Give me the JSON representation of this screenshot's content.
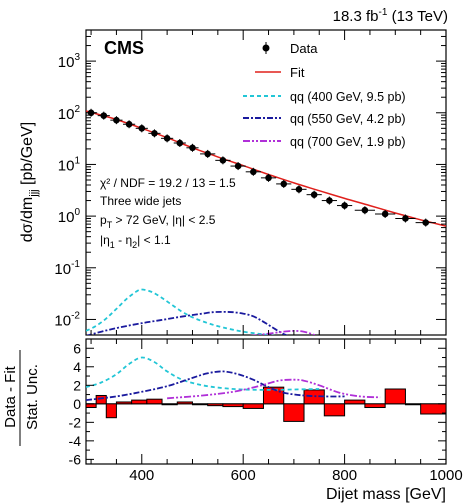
{
  "header": {
    "lumi": "18.3",
    "lumi_unit": "fb",
    "lumi_exp": "-1",
    "energy": "(13 TeV)"
  },
  "experiment": "CMS",
  "chart_data": [
    {
      "type": "scatter",
      "panel": "top",
      "ylabel": "dσ/dm",
      "ylabel_sub": "jjj",
      "ylabel_unit": "[pb/GeV]",
      "yscale": "log",
      "xlim": [
        290,
        1000
      ],
      "ylim": [
        0.005,
        4000
      ],
      "yticks": [
        {
          "v": 0.01,
          "base": "10",
          "exp": "-2"
        },
        {
          "v": 0.1,
          "base": "10",
          "exp": "-1"
        },
        {
          "v": 1,
          "base": "10",
          "exp": "0"
        },
        {
          "v": 10,
          "base": "10",
          "exp": "1"
        },
        {
          "v": 100,
          "base": "10",
          "exp": "2"
        },
        {
          "v": 1000,
          "base": "10",
          "exp": "3"
        }
      ],
      "legend": {
        "position": "top-right",
        "entries": [
          {
            "label": "Data",
            "kind": "marker",
            "color": "#000000"
          },
          {
            "label": "Fit",
            "kind": "line",
            "color": "#e0201c"
          },
          {
            "label": "qq (400 GeV, 9.5 pb)",
            "kind": "dashed",
            "color": "#22c6d6"
          },
          {
            "label": "qq (550 GeV, 4.2 pb)",
            "kind": "dashdot",
            "color": "#1a1a9e"
          },
          {
            "label": "qq (700 GeV, 1.9 pb)",
            "kind": "dashdotdot",
            "color": "#b030d8"
          }
        ]
      },
      "annotations": {
        "chi2": "χ² / NDF = 19.2 / 13 = 1.5",
        "selection": "Three wide jets",
        "pt_a": "p",
        "pt_b": "T",
        "pt_c": " > 72 GeV, |η| < 2.5",
        "deta_a": "|η",
        "deta_b": "1",
        "deta_c": " - η",
        "deta_d": "2",
        "deta_e": "| < 1.1"
      },
      "data": {
        "x": [
          300,
          325,
          350,
          375,
          400,
          425,
          450,
          475,
          500,
          530,
          560,
          590,
          620,
          650,
          680,
          710,
          740,
          770,
          800,
          840,
          880,
          920,
          960
        ],
        "y": [
          100,
          88,
          72,
          60,
          50,
          40,
          32,
          26,
          21,
          16,
          12,
          9.3,
          7.2,
          5.5,
          4.2,
          3.3,
          2.6,
          2.0,
          1.6,
          1.3,
          1.1,
          0.9,
          0.75
        ],
        "xerr_low": [
          12,
          12,
          12,
          12,
          12,
          12,
          12,
          12,
          12,
          15,
          15,
          15,
          15,
          15,
          15,
          15,
          15,
          15,
          15,
          20,
          20,
          20,
          20
        ],
        "xerr_high": [
          12,
          12,
          12,
          12,
          12,
          12,
          12,
          12,
          12,
          15,
          15,
          15,
          15,
          15,
          15,
          15,
          15,
          15,
          15,
          20,
          20,
          20,
          20
        ]
      },
      "fit": {
        "x": [
          290,
          320,
          350,
          400,
          450,
          500,
          550,
          600,
          650,
          700,
          750,
          800,
          850,
          900,
          950,
          1000
        ],
        "y": [
          108,
          90,
          74,
          50,
          33,
          21,
          14,
          9.5,
          6.4,
          4.4,
          3.1,
          2.2,
          1.6,
          1.15,
          0.85,
          0.64
        ]
      },
      "signals": [
        {
          "name": "qq (400 GeV, 9.5 pb)",
          "x": [
            290,
            310,
            330,
            350,
            370,
            390,
            400,
            420,
            440,
            460,
            480,
            500,
            530,
            560,
            600,
            650,
            700,
            750,
            800,
            850
          ],
          "y": [
            0.006,
            0.0075,
            0.0105,
            0.016,
            0.025,
            0.035,
            0.038,
            0.034,
            0.026,
            0.019,
            0.014,
            0.011,
            0.0085,
            0.007,
            0.0058,
            0.005,
            0.0044,
            0.0042,
            0.0042,
            0.0043
          ]
        },
        {
          "name": "qq (550 GeV, 4.2 pb)",
          "x": [
            290,
            320,
            350,
            380,
            410,
            440,
            470,
            500,
            520,
            540,
            560,
            580,
            600,
            620,
            640,
            660,
            680,
            700,
            730,
            760,
            800,
            850
          ],
          "y": [
            0.0048,
            0.0058,
            0.0068,
            0.0078,
            0.0088,
            0.0098,
            0.011,
            0.0122,
            0.013,
            0.0138,
            0.014,
            0.0138,
            0.013,
            0.0115,
            0.009,
            0.0068,
            0.0052,
            0.0044,
            0.0038,
            0.0036,
            0.0036,
            0.0037
          ]
        },
        {
          "name": "qq (700 GeV, 1.9 pb)",
          "x": [
            380,
            420,
            460,
            500,
            540,
            580,
            620,
            650,
            680,
            700,
            720,
            740,
            760,
            780,
            800,
            830,
            860
          ],
          "y": [
            0.0025,
            0.0029,
            0.0033,
            0.0037,
            0.0041,
            0.0045,
            0.0049,
            0.0053,
            0.0058,
            0.006,
            0.0058,
            0.005,
            0.0039,
            0.0031,
            0.0027,
            0.0025,
            0.0025
          ]
        }
      ]
    },
    {
      "type": "bar",
      "panel": "bottom",
      "xlabel": "Dijet mass [GeV]",
      "ylabel_top": "Data - Fit",
      "ylabel_bottom": "Stat. Unc.",
      "xlim": [
        290,
        1000
      ],
      "ylim": [
        -6.5,
        7
      ],
      "yticks": [
        -6,
        -4,
        -2,
        0,
        2,
        4,
        6
      ],
      "xticks": [
        400,
        600,
        800,
        1000
      ],
      "pulls": {
        "edges": [
          290,
          310,
          330,
          350,
          380,
          410,
          440,
          470,
          500,
          530,
          560,
          600,
          640,
          680,
          720,
          760,
          800,
          840,
          880,
          920,
          950,
          1000
        ],
        "values": [
          -0.4,
          0.9,
          -1.5,
          0.2,
          0.4,
          0.5,
          -0.1,
          0.2,
          -0.1,
          -0.2,
          -0.3,
          -0.5,
          1.8,
          -1.9,
          1.5,
          -1.3,
          0.4,
          -0.4,
          1.6,
          -0.1,
          -1.1
        ]
      },
      "signals": [
        {
          "name": "qq (400 GeV, 9.5 pb)",
          "x": [
            290,
            320,
            350,
            375,
            400,
            425,
            450,
            480,
            520,
            560,
            600,
            650,
            700,
            750
          ],
          "y": [
            1.8,
            2.3,
            3.2,
            4.3,
            5.0,
            4.5,
            3.5,
            2.6,
            2.0,
            1.7,
            1.55,
            1.5,
            1.55,
            1.6
          ]
        },
        {
          "name": "qq (550 GeV, 4.2 pb)",
          "x": [
            290,
            350,
            400,
            450,
            500,
            530,
            560,
            590,
            620,
            650,
            680,
            720,
            760,
            800
          ],
          "y": [
            0.4,
            0.8,
            1.3,
            1.9,
            2.8,
            3.3,
            3.5,
            3.2,
            2.6,
            1.8,
            1.2,
            0.9,
            0.8,
            0.8
          ]
        },
        {
          "name": "qq (700 GeV, 1.9 pb)",
          "x": [
            450,
            520,
            580,
            630,
            670,
            700,
            720,
            750,
            790,
            830,
            870
          ],
          "y": [
            0.6,
            0.9,
            1.3,
            1.9,
            2.5,
            2.6,
            2.5,
            2.0,
            1.2,
            0.8,
            0.7
          ]
        }
      ]
    }
  ],
  "colors": {
    "fit": "#e0201c",
    "pull_fill": "#ff0000",
    "sig400": "#22c6d6",
    "sig550": "#1a1a9e",
    "sig700": "#b030d8"
  }
}
